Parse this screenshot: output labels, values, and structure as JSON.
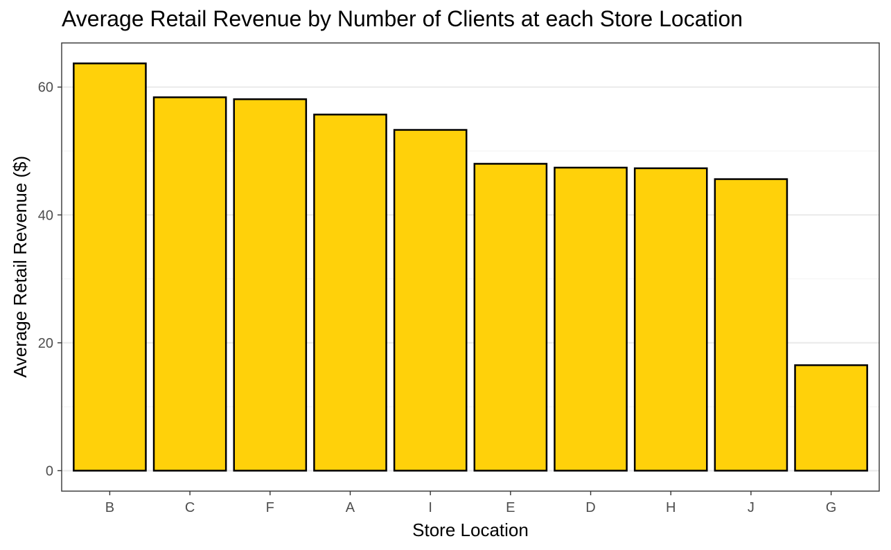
{
  "chart_data": {
    "type": "bar",
    "title": "Average Retail Revenue by Number of Clients at each Store Location",
    "xlabel": "Store Location",
    "ylabel": "Average Retail Revenue ($)",
    "categories": [
      "B",
      "C",
      "F",
      "A",
      "I",
      "E",
      "D",
      "H",
      "J",
      "G"
    ],
    "values": [
      63.7,
      58.4,
      58.1,
      55.7,
      53.3,
      48.0,
      47.4,
      47.3,
      45.6,
      16.5
    ],
    "ylim": [
      -3.2,
      66.9
    ],
    "yticks": [
      0,
      20,
      40,
      60
    ],
    "ytick_labels": [
      "0",
      "20",
      "40",
      "60"
    ],
    "grid": true,
    "legend": "none",
    "colors": {
      "bar_fill": "#FFD10A",
      "bar_stroke": "#000000",
      "grid_major": "#EBEBEB",
      "grid_minor": "#F4F4F4",
      "panel_border": "#333333",
      "tick_text": "#4D4D4D"
    }
  }
}
